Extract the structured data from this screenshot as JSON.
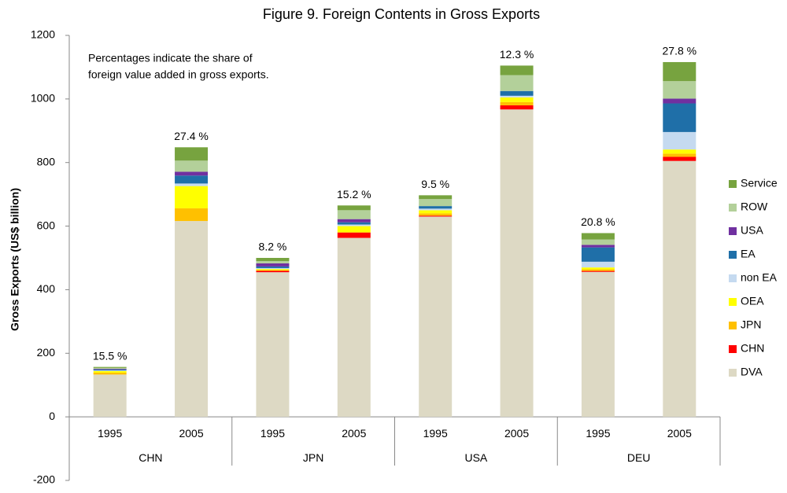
{
  "chart_data": {
    "type": "stacked_bar",
    "title": "Figure 9. Foreign Contents in Gross Exports",
    "y_label": "Gross Exports (US$ billion)",
    "note": [
      "Percentages indicate the share  of",
      "foreign value added in gross exports."
    ],
    "categories": [
      "1995",
      "2005",
      "1995",
      "2005",
      "1995",
      "2005",
      "1995",
      "2005"
    ],
    "groups": [
      "CHN",
      "JPN",
      "USA",
      "DEU"
    ],
    "annotations": [
      "15.5 %",
      "27.4 %",
      "8.2 %",
      "15.2 %",
      "9.5 %",
      "12.3 %",
      "20.8 %",
      "27.8 %"
    ],
    "series": [
      {
        "name": "DVA",
        "color": "#ddd9c4",
        "values": [
          133,
          616,
          455,
          563,
          630,
          967,
          456,
          805
        ]
      },
      {
        "name": "CHN",
        "color": "#ff0000",
        "values": [
          0,
          0,
          5,
          17,
          3,
          13,
          3,
          13
        ]
      },
      {
        "name": "JPN",
        "color": "#ffc000",
        "values": [
          6,
          40,
          0,
          0,
          7,
          10,
          5,
          10
        ]
      },
      {
        "name": "OEA",
        "color": "#ffff00",
        "values": [
          5,
          70,
          5,
          20,
          10,
          15,
          6,
          13
        ]
      },
      {
        "name": "non EA",
        "color": "#c5daf0",
        "values": [
          2,
          8,
          3,
          5,
          5,
          5,
          18,
          55
        ]
      },
      {
        "name": "EA",
        "color": "#1f6fa8",
        "values": [
          3,
          25,
          5,
          7,
          8,
          15,
          45,
          90
        ]
      },
      {
        "name": "USA",
        "color": "#7030a0",
        "values": [
          2,
          12,
          10,
          10,
          0,
          0,
          8,
          15
        ]
      },
      {
        "name": "ROW",
        "color": "#b3d09a",
        "values": [
          3,
          35,
          7,
          28,
          22,
          50,
          17,
          55
        ]
      },
      {
        "name": "Service",
        "color": "#77a33f",
        "values": [
          3,
          42,
          10,
          15,
          12,
          30,
          20,
          60
        ]
      }
    ],
    "ylim": [
      -200,
      1200
    ],
    "yticks": [
      -200,
      0,
      200,
      400,
      600,
      800,
      1000,
      1200
    ]
  }
}
